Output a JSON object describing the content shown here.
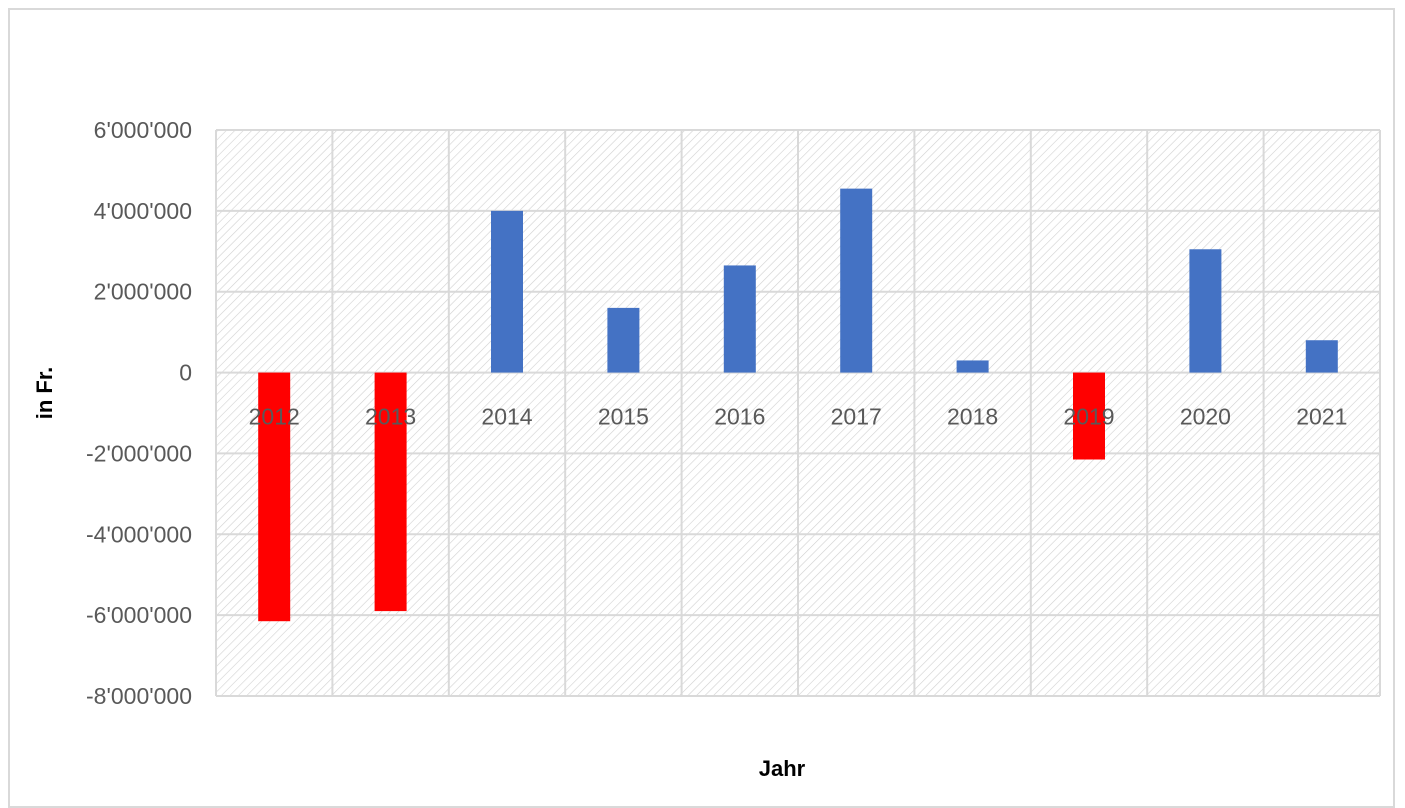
{
  "chart_data": {
    "type": "bar",
    "title": "",
    "xlabel": "Jahr",
    "ylabel": "in  Fr.",
    "categories": [
      "2012",
      "2013",
      "2014",
      "2015",
      "2016",
      "2017",
      "2018",
      "2019",
      "2020",
      "2021"
    ],
    "series": [
      {
        "values": [
          -6150000,
          -5900000,
          4000000,
          1600000,
          2650000,
          4550000,
          300000,
          -2150000,
          3050000,
          800000
        ]
      }
    ],
    "ylim": [
      -8000000,
      6000000
    ],
    "yticks": [
      6000000,
      4000000,
      2000000,
      0,
      -2000000,
      -4000000,
      -6000000,
      -8000000
    ],
    "ytick_labels": [
      "6'000'000",
      "4'000'000",
      "2'000'000",
      "0",
      "-2'000'000",
      "-4'000'000",
      "-6'000'000",
      "-8'000'000"
    ],
    "grid": true,
    "legend": "none",
    "colors": {
      "positive": "#4472c4",
      "negative": "#ff0000",
      "grid": "#d9d9d9",
      "hatch": "#d0d0d0"
    }
  }
}
